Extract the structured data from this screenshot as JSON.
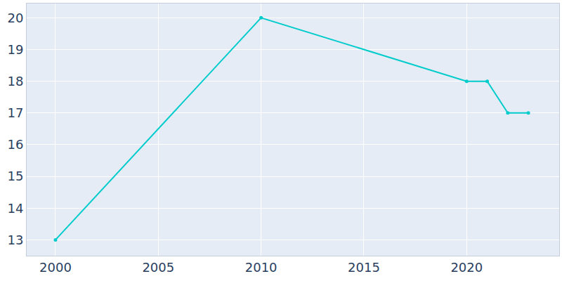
{
  "chart_data": {
    "type": "line",
    "x": [
      2000,
      2010,
      2020,
      2021,
      2022,
      2023
    ],
    "values": [
      13,
      20,
      18,
      18,
      17,
      17
    ],
    "color": "#00cccc",
    "marker": "circle",
    "xlim": [
      1998.6,
      2024.5
    ],
    "xticks": [
      2000,
      2005,
      2010,
      2015,
      2020
    ],
    "ylim": [
      12.5,
      20.45
    ],
    "yticks": [
      13,
      14,
      15,
      16,
      17,
      18,
      19,
      20
    ],
    "grid": true
  }
}
